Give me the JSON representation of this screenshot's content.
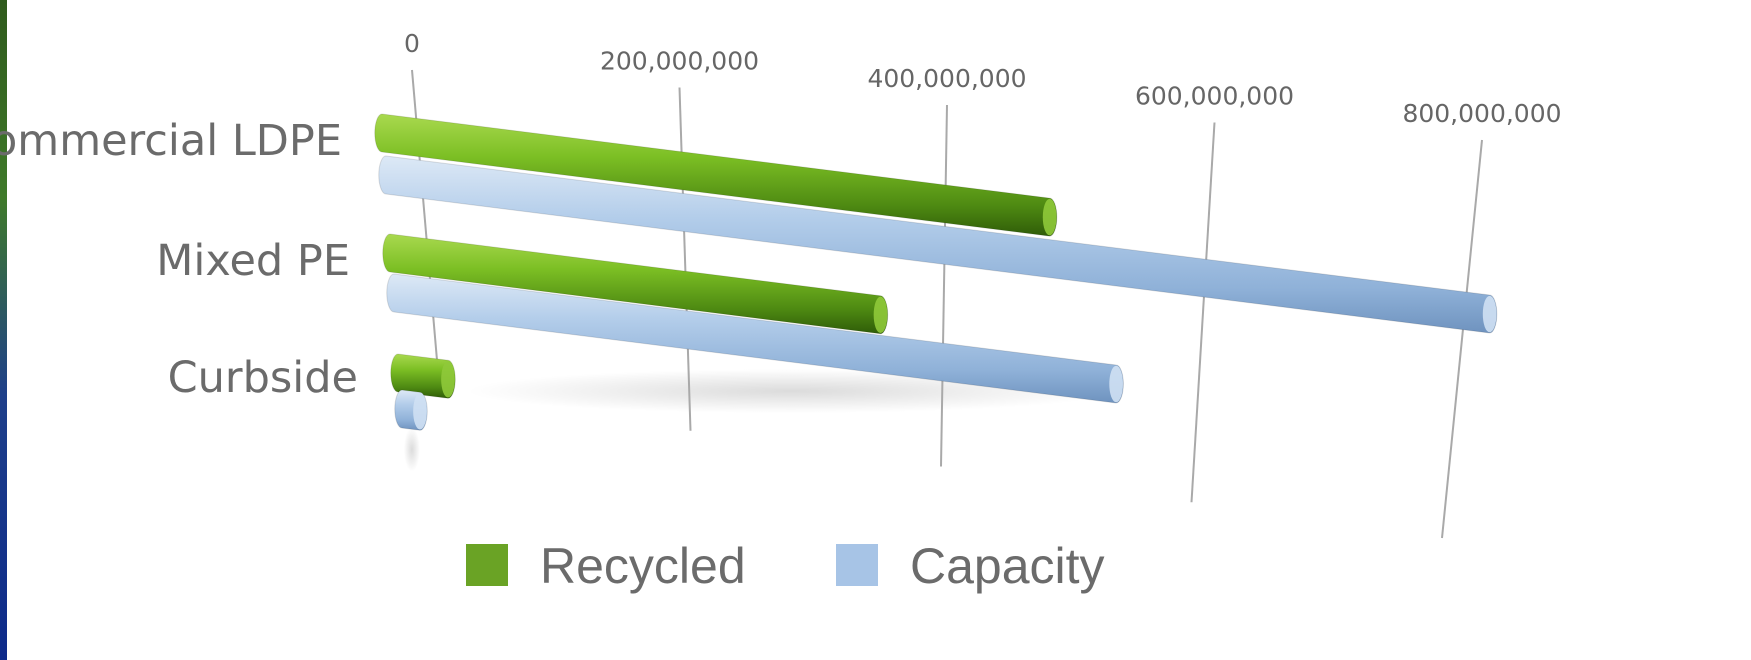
{
  "chart_data": {
    "type": "bar",
    "orientation": "horizontal",
    "title": "",
    "xlabel": "",
    "ylabel": "",
    "xlim": [
      0,
      800000000
    ],
    "grid": true,
    "legend_position": "bottom",
    "x_ticks": [
      {
        "value": 0,
        "label": "0"
      },
      {
        "value": 200000000,
        "label": "200,000,000"
      },
      {
        "value": 400000000,
        "label": "400,000,000"
      },
      {
        "value": 600000000,
        "label": "600,000,000"
      },
      {
        "value": 800000000,
        "label": "800,000,000"
      }
    ],
    "categories": [
      "Commercial LDPE",
      "Mixed PE",
      "Curbside"
    ],
    "series": [
      {
        "name": "Recycled",
        "color": "#6aa325",
        "values": [
          490000000,
          360000000,
          25000000
        ]
      },
      {
        "name": "Capacity",
        "color": "#a7c4e6",
        "values": [
          810000000,
          530000000,
          12000000
        ]
      }
    ]
  }
}
